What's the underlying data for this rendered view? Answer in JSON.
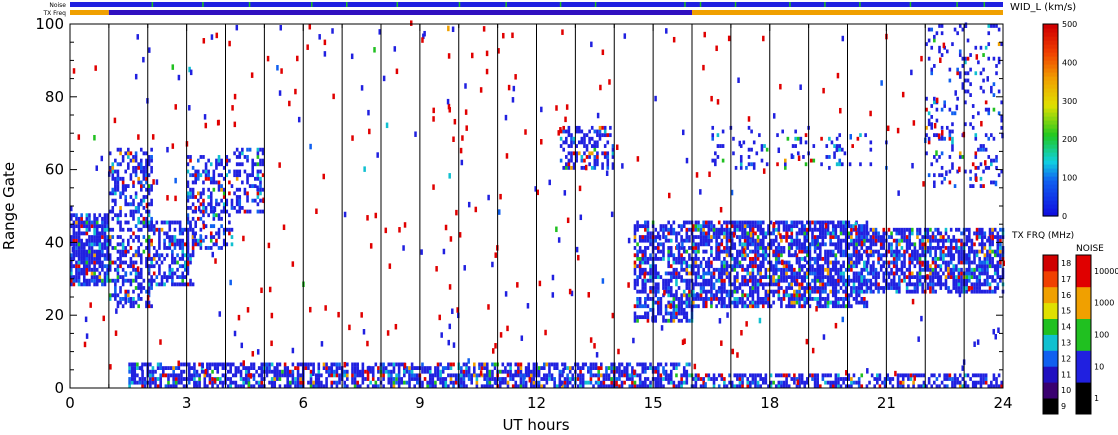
{
  "chart_data": {
    "type": "heatmap",
    "title": "",
    "xlabel": "UT hours",
    "ylabel": "Range Gate",
    "xlim": [
      0,
      24
    ],
    "ylim": [
      0,
      100
    ],
    "x_ticks": [
      "0",
      "3",
      "6",
      "9",
      "12",
      "15",
      "18",
      "21",
      "24"
    ],
    "y_ticks": [
      "0",
      "20",
      "40",
      "60",
      "80",
      "100"
    ],
    "minor_x_interval_hours": 1,
    "status_strips": [
      {
        "label": "Noise",
        "color": "#2020e0",
        "marks_color": "#20c020",
        "marks_x_hours": [
          2.1,
          3.4,
          4.6,
          6.2,
          7.1,
          8.4,
          10.0,
          11.2,
          12.6,
          13.5,
          15.8,
          16.2,
          17.1,
          18.5,
          19.4,
          20.3,
          21.6,
          22.8,
          23.5
        ]
      },
      {
        "label": "TX Freq",
        "segments": [
          {
            "x0": 0,
            "x1": 1.0,
            "color": "#f0a000"
          },
          {
            "x0": 1.0,
            "x1": 16.0,
            "color": "#3010c0"
          },
          {
            "x0": 16.0,
            "x1": 24,
            "color": "#f0a000"
          }
        ]
      }
    ],
    "scatter_regions": [
      {
        "x": [
          0.0,
          1.0
        ],
        "y": [
          28,
          48
        ],
        "density": 0.8
      },
      {
        "x": [
          1.0,
          2.1
        ],
        "y": [
          22,
          66
        ],
        "density": 0.45
      },
      {
        "x": [
          2.0,
          3.2
        ],
        "y": [
          28,
          46
        ],
        "density": 0.55
      },
      {
        "x": [
          3.0,
          4.2
        ],
        "y": [
          38,
          64
        ],
        "density": 0.45
      },
      {
        "x": [
          4.2,
          5.0
        ],
        "y": [
          48,
          66
        ],
        "density": 0.4
      },
      {
        "x": [
          12.6,
          14.0
        ],
        "y": [
          60,
          72
        ],
        "density": 0.5
      },
      {
        "x": [
          14.5,
          16.0
        ],
        "y": [
          18,
          46
        ],
        "density": 0.6
      },
      {
        "x": [
          16.0,
          20.5
        ],
        "y": [
          22,
          46
        ],
        "density": 0.7
      },
      {
        "x": [
          20.5,
          24.0
        ],
        "y": [
          26,
          44
        ],
        "density": 0.7
      },
      {
        "x": [
          16.5,
          21.0
        ],
        "y": [
          60,
          72
        ],
        "density": 0.12
      },
      {
        "x": [
          22.0,
          24.0
        ],
        "y": [
          55,
          100
        ],
        "density": 0.15
      },
      {
        "x": [
          1.5,
          16.0
        ],
        "y": [
          0,
          7
        ],
        "density": 0.65
      },
      {
        "x": [
          16.0,
          24.0
        ],
        "y": [
          0,
          4
        ],
        "density": 0.55
      }
    ],
    "colorbars": [
      {
        "label": "WID_L (km/s)",
        "ticks": [
          "0",
          "100",
          "200",
          "300",
          "400",
          "500"
        ],
        "range": [
          0,
          500
        ]
      },
      {
        "label": "TX FRQ (MHz)",
        "ticks": [
          "9",
          "10",
          "11",
          "12",
          "13",
          "14",
          "15",
          "16",
          "17",
          "18"
        ],
        "colors": [
          "#000000",
          "#3a0070",
          "#2010c0",
          "#1060f0",
          "#10c0d0",
          "#20c020",
          "#e0e000",
          "#f0a000",
          "#f04000",
          "#d00000"
        ]
      },
      {
        "label": "NOISE",
        "ticks": [
          "1",
          "10",
          "100",
          "1000",
          "10000"
        ],
        "colors": [
          "#000000",
          "#2020e0",
          "#20c020",
          "#f0a000",
          "#e00000"
        ]
      }
    ]
  }
}
